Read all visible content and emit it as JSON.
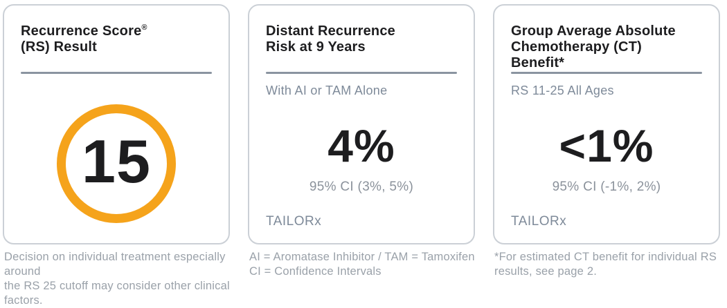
{
  "colors": {
    "accent_orange": "#F5A31B",
    "divider": "#8A94A0",
    "card_border": "#CBD0D6",
    "title_text": "#1D1D1F",
    "subtitle_text": "#7E8A99",
    "ci_text": "#8B929B",
    "muted_text": "#9AA1A9"
  },
  "cards": [
    {
      "title_lines": [
        "Recurrence Score",
        "(RS) Result"
      ],
      "reg_mark": "®",
      "score_value": "15",
      "footnote_lines": [
        "Decision on individual treatment especially around",
        "the RS 25 cutoff may consider other clinical factors."
      ]
    },
    {
      "title_lines": [
        "Distant Recurrence",
        "Risk at 9 Years"
      ],
      "subtitle": "With AI or TAM Alone",
      "value": "4%",
      "ci": "95% CI (3%, 5%)",
      "source": "TAILORx",
      "footnote_lines": [
        "AI = Aromatase Inhibitor / TAM = Tamoxifen",
        "CI = Confidence Intervals"
      ]
    },
    {
      "title_lines": [
        "Group Average Absolute",
        "Chemotherapy (CT)",
        "Benefit*"
      ],
      "subtitle": "RS 11-25 All Ages",
      "value": "<1%",
      "ci": "95% CI (-1%, 2%)",
      "source": "TAILORx",
      "footnote_lines": [
        "*For estimated CT benefit for individual RS",
        "results, see page 2."
      ]
    }
  ]
}
